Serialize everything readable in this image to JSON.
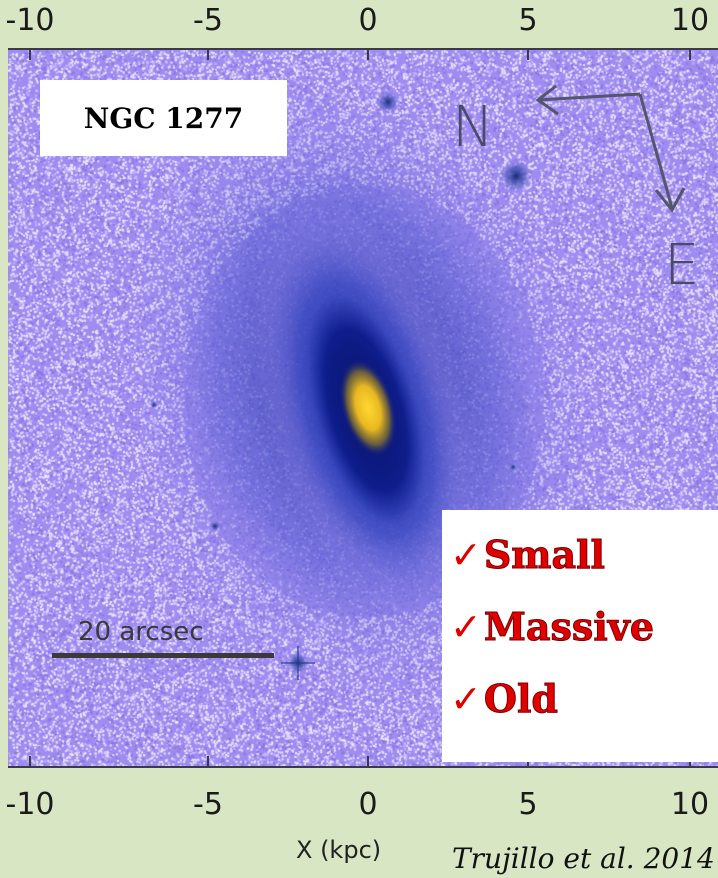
{
  "x_ticks_top": [
    "-10",
    "-5",
    "0",
    "5",
    "10"
  ],
  "x_ticks_bottom": [
    "-10",
    "-5",
    "0",
    "5",
    "10"
  ],
  "object_label": "NGC 1277",
  "compass": {
    "north": "N",
    "east": "E"
  },
  "scale_bar_label": "20 arcsec",
  "properties": [
    "Small",
    "Massive",
    "Old"
  ],
  "check_mark": "✓",
  "x_axis_title": "X (kpc)",
  "credit": "Trujillo et al. 2014",
  "colors": {
    "background": "#9e8cf0",
    "core": "#f2c020",
    "halo": "#1a2a9a",
    "properties_text": "#e00000"
  }
}
